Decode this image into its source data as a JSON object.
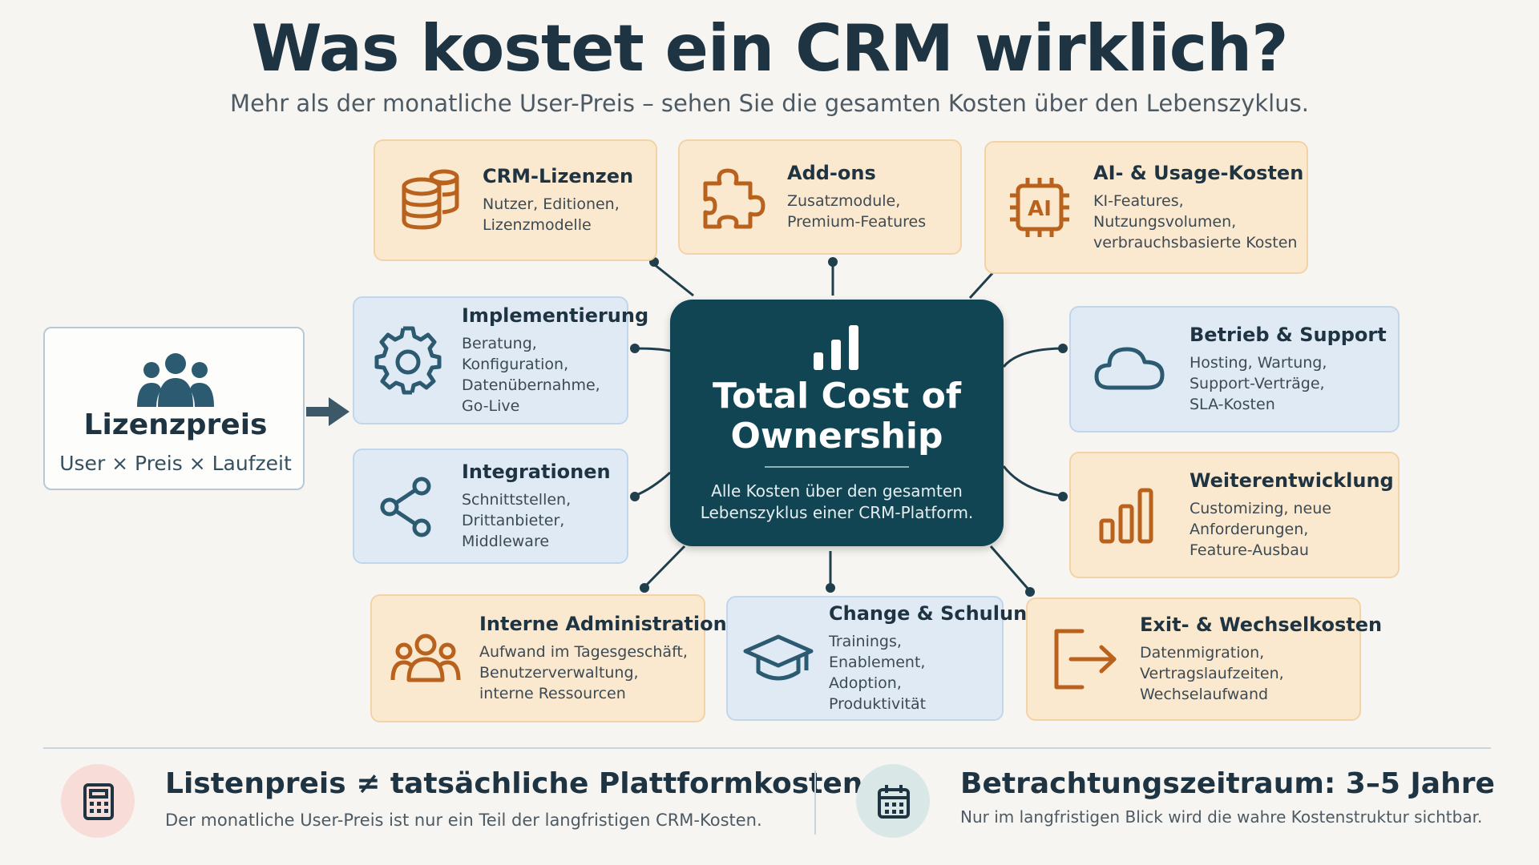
{
  "header": {
    "title": "Was kostet ein CRM wirklich?",
    "subtitle": "Mehr als der monatliche User-Preis – sehen Sie die gesamten Kosten über den Lebenszyklus."
  },
  "license": {
    "title": "Lizenzpreis",
    "formula": "User × Preis × Laufzeit",
    "icon": "users-group-icon"
  },
  "hub": {
    "title": "Total Cost of Ownership",
    "description": "Alle Kosten über den gesamten Lebenszyklus einer CRM-Platform.",
    "icon": "bar-chart-icon"
  },
  "cards": {
    "crm_licenses": {
      "title": "CRM-Lizenzen",
      "desc": "Nutzer, Editionen, Lizenzmodelle",
      "icon": "coins-stack-icon",
      "theme": "orange"
    },
    "addons": {
      "title": "Add-ons",
      "desc": "Zusatzmodule, Premium-Features",
      "icon": "puzzle-icon",
      "theme": "orange"
    },
    "ai_usage": {
      "title": "AI- & Usage-Kosten",
      "desc": "KI-Features, Nutzungsvolumen, verbrauchsbasierte Kosten",
      "icon": "ai-chip-icon",
      "icon_text": "AI",
      "theme": "orange"
    },
    "implementation": {
      "title": "Implementierung",
      "desc": "Beratung, Konfiguration, Datenübernahme, Go-Live",
      "icon": "gear-icon",
      "theme": "blue"
    },
    "operations": {
      "title": "Betrieb & Support",
      "desc": "Hosting, Wartung, Support-Verträge, SLA-Kosten",
      "icon": "cloud-icon",
      "theme": "blue"
    },
    "integrations": {
      "title": "Integrationen",
      "desc": "Schnittstellen, Drittanbieter, Middleware",
      "icon": "share-nodes-icon",
      "theme": "blue"
    },
    "development": {
      "title": "Weiterentwicklung",
      "desc": "Customizing, neue Anforderungen, Feature-Ausbau",
      "icon": "bar-chart-icon",
      "theme": "orange"
    },
    "admin": {
      "title": "Interne Administration",
      "desc": "Aufwand im Tagesgeschäft, Benutzerverwaltung, interne Ressourcen",
      "icon": "people-icon",
      "theme": "orange"
    },
    "training": {
      "title": "Change & Schulung",
      "desc": "Trainings, Enablement, Adoption, Produktivität",
      "icon": "graduation-cap-icon",
      "theme": "blue"
    },
    "exit": {
      "title": "Exit- & Wechselkosten",
      "desc": "Datenmigration, Vertragslaufzeiten, Wechselaufwand",
      "icon": "exit-arrow-icon",
      "theme": "orange"
    }
  },
  "footer": {
    "left": {
      "title": "Listenpreis ≠ tatsächliche Plattformkosten",
      "subtitle": "Der monatliche User-Preis ist nur ein Teil der langfristigen CRM-Kosten.",
      "icon": "calculator-icon"
    },
    "right": {
      "title": "Betrachtungszeitraum: 3–5 Jahre",
      "subtitle": "Nur im langfristigen Blick wird die wahre Kostenstruktur sichtbar.",
      "icon": "calendar-icon"
    }
  },
  "colors": {
    "primary_dark": "#124553",
    "text_dark": "#1f3442",
    "orange_card": "#fbe9cf",
    "orange_icon": "#b8621e",
    "blue_card": "#dfeaf5",
    "blue_icon": "#2c5a70",
    "background": "#f7f5f1"
  }
}
